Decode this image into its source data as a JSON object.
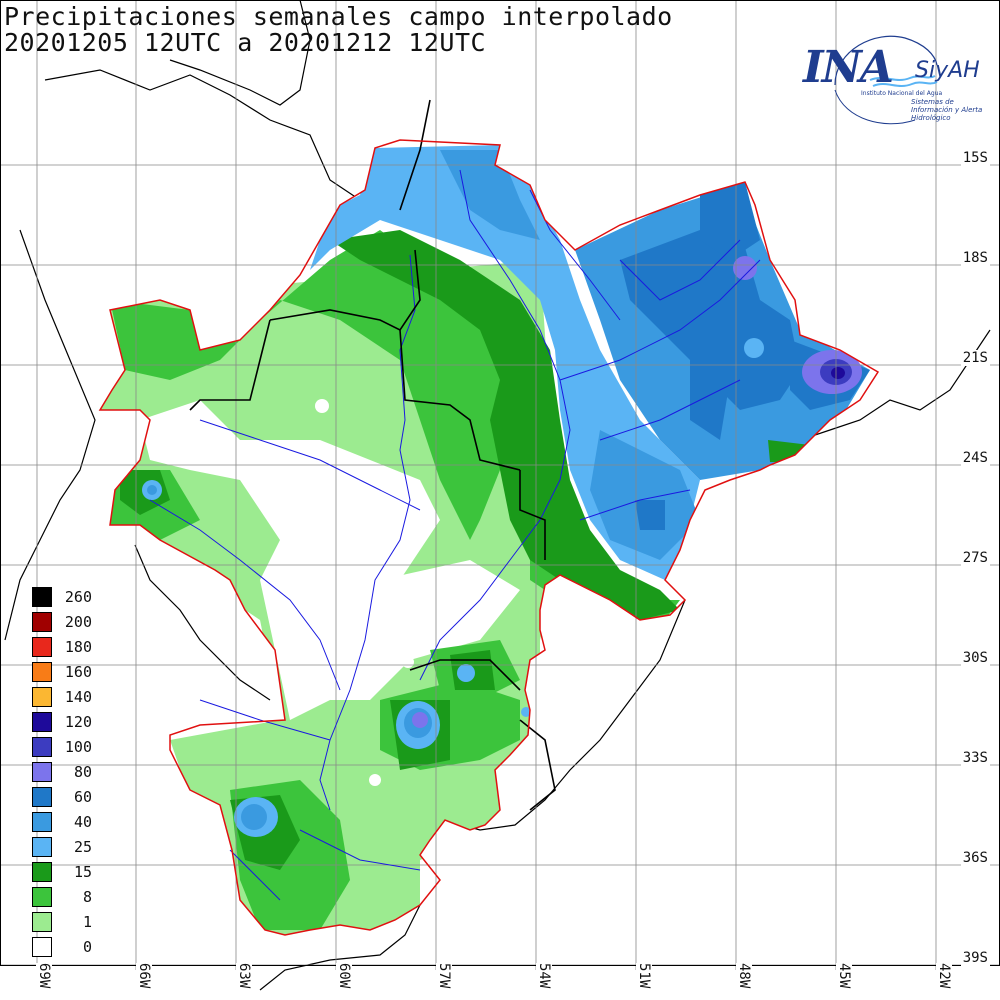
{
  "title_line1": "Precipitaciones semanales campo interpolado",
  "title_line2": "20201205 12UTC a 20201212 12UTC",
  "logo": {
    "name": "INA",
    "siyah": "SiyAH",
    "subtitle": "Instituto Nacional del Agua",
    "subtitle2": "Sistemas de Información y Alerta Hidrológico",
    "color": "#1f3d8f"
  },
  "lat_labels": [
    "15S",
    "18S",
    "21S",
    "24S",
    "27S",
    "30S",
    "33S",
    "36S",
    "39S"
  ],
  "lon_labels": [
    "69W",
    "66W",
    "63W",
    "60W",
    "57W",
    "54W",
    "51W",
    "48W",
    "45W",
    "42W"
  ],
  "legend": [
    {
      "label": "260",
      "color": "#000000"
    },
    {
      "label": "200",
      "color": "#a00000"
    },
    {
      "label": "180",
      "color": "#e8281c"
    },
    {
      "label": "160",
      "color": "#f87c17"
    },
    {
      "label": "140",
      "color": "#fbb732"
    },
    {
      "label": "120",
      "color": "#1e0a9a"
    },
    {
      "label": "100",
      "color": "#3c3cc0"
    },
    {
      "label": "80",
      "color": "#7c74ec"
    },
    {
      "label": "60",
      "color": "#1f78c8"
    },
    {
      "label": "40",
      "color": "#3a9ae0"
    },
    {
      "label": "25",
      "color": "#5ab4f4"
    },
    {
      "label": "15",
      "color": "#1a9a1a"
    },
    {
      "label": "8",
      "color": "#3cc43c"
    },
    {
      "label": "1",
      "color": "#9ceb90"
    },
    {
      "label": "0",
      "color": "#ffffff"
    }
  ]
}
